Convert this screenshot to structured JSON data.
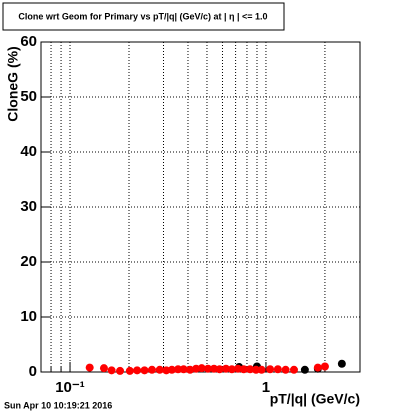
{
  "chart_data": {
    "type": "scatter",
    "title": "Clone wrt Geom for Primary vs pT/|q| (GeV/c) at | η | <= 1.0",
    "x_label": "pT/|q| (GeV/c)",
    "y_label": "CloneG (%)",
    "timestamp": "Sun Apr 10 10:19:21 2016",
    "xlog": true,
    "grid": true,
    "xlim": [
      0.0711,
      3.02
    ],
    "ylim": [
      0,
      60
    ],
    "xticks": [
      {
        "value": 0.1,
        "label": "10⁻¹"
      },
      1
    ],
    "xgrid": [
      0.08,
      0.09,
      0.2,
      0.3,
      0.4,
      0.5,
      0.6,
      0.7,
      0.8,
      0.9,
      2
    ],
    "yticks": [
      0,
      10,
      20,
      30,
      40,
      50,
      60
    ],
    "series": [
      {
        "name": "black",
        "color": "#000000",
        "x": [
          0.73,
          0.9,
          1.58,
          1.84,
          2.44
        ],
        "values": [
          0.9,
          1.0,
          0.4,
          0.6,
          1.5
        ]
      },
      {
        "name": "red",
        "color": "#ff0000",
        "x": [
          0.126,
          0.149,
          0.163,
          0.18,
          0.202,
          0.22,
          0.24,
          0.262,
          0.287,
          0.31,
          0.331,
          0.356,
          0.38,
          0.41,
          0.44,
          0.47,
          0.506,
          0.543,
          0.58,
          0.625,
          0.67,
          0.72,
          0.77,
          0.83,
          0.89,
          0.95,
          1.05,
          1.15,
          1.26,
          1.39,
          1.84,
          2.0
        ],
        "values": [
          0.8,
          0.7,
          0.3,
          0.2,
          0.2,
          0.3,
          0.3,
          0.4,
          0.4,
          0.3,
          0.4,
          0.5,
          0.5,
          0.4,
          0.6,
          0.7,
          0.6,
          0.6,
          0.5,
          0.6,
          0.5,
          0.6,
          0.5,
          0.5,
          0.4,
          0.4,
          0.5,
          0.5,
          0.4,
          0.4,
          0.8,
          1.0
        ]
      }
    ]
  }
}
